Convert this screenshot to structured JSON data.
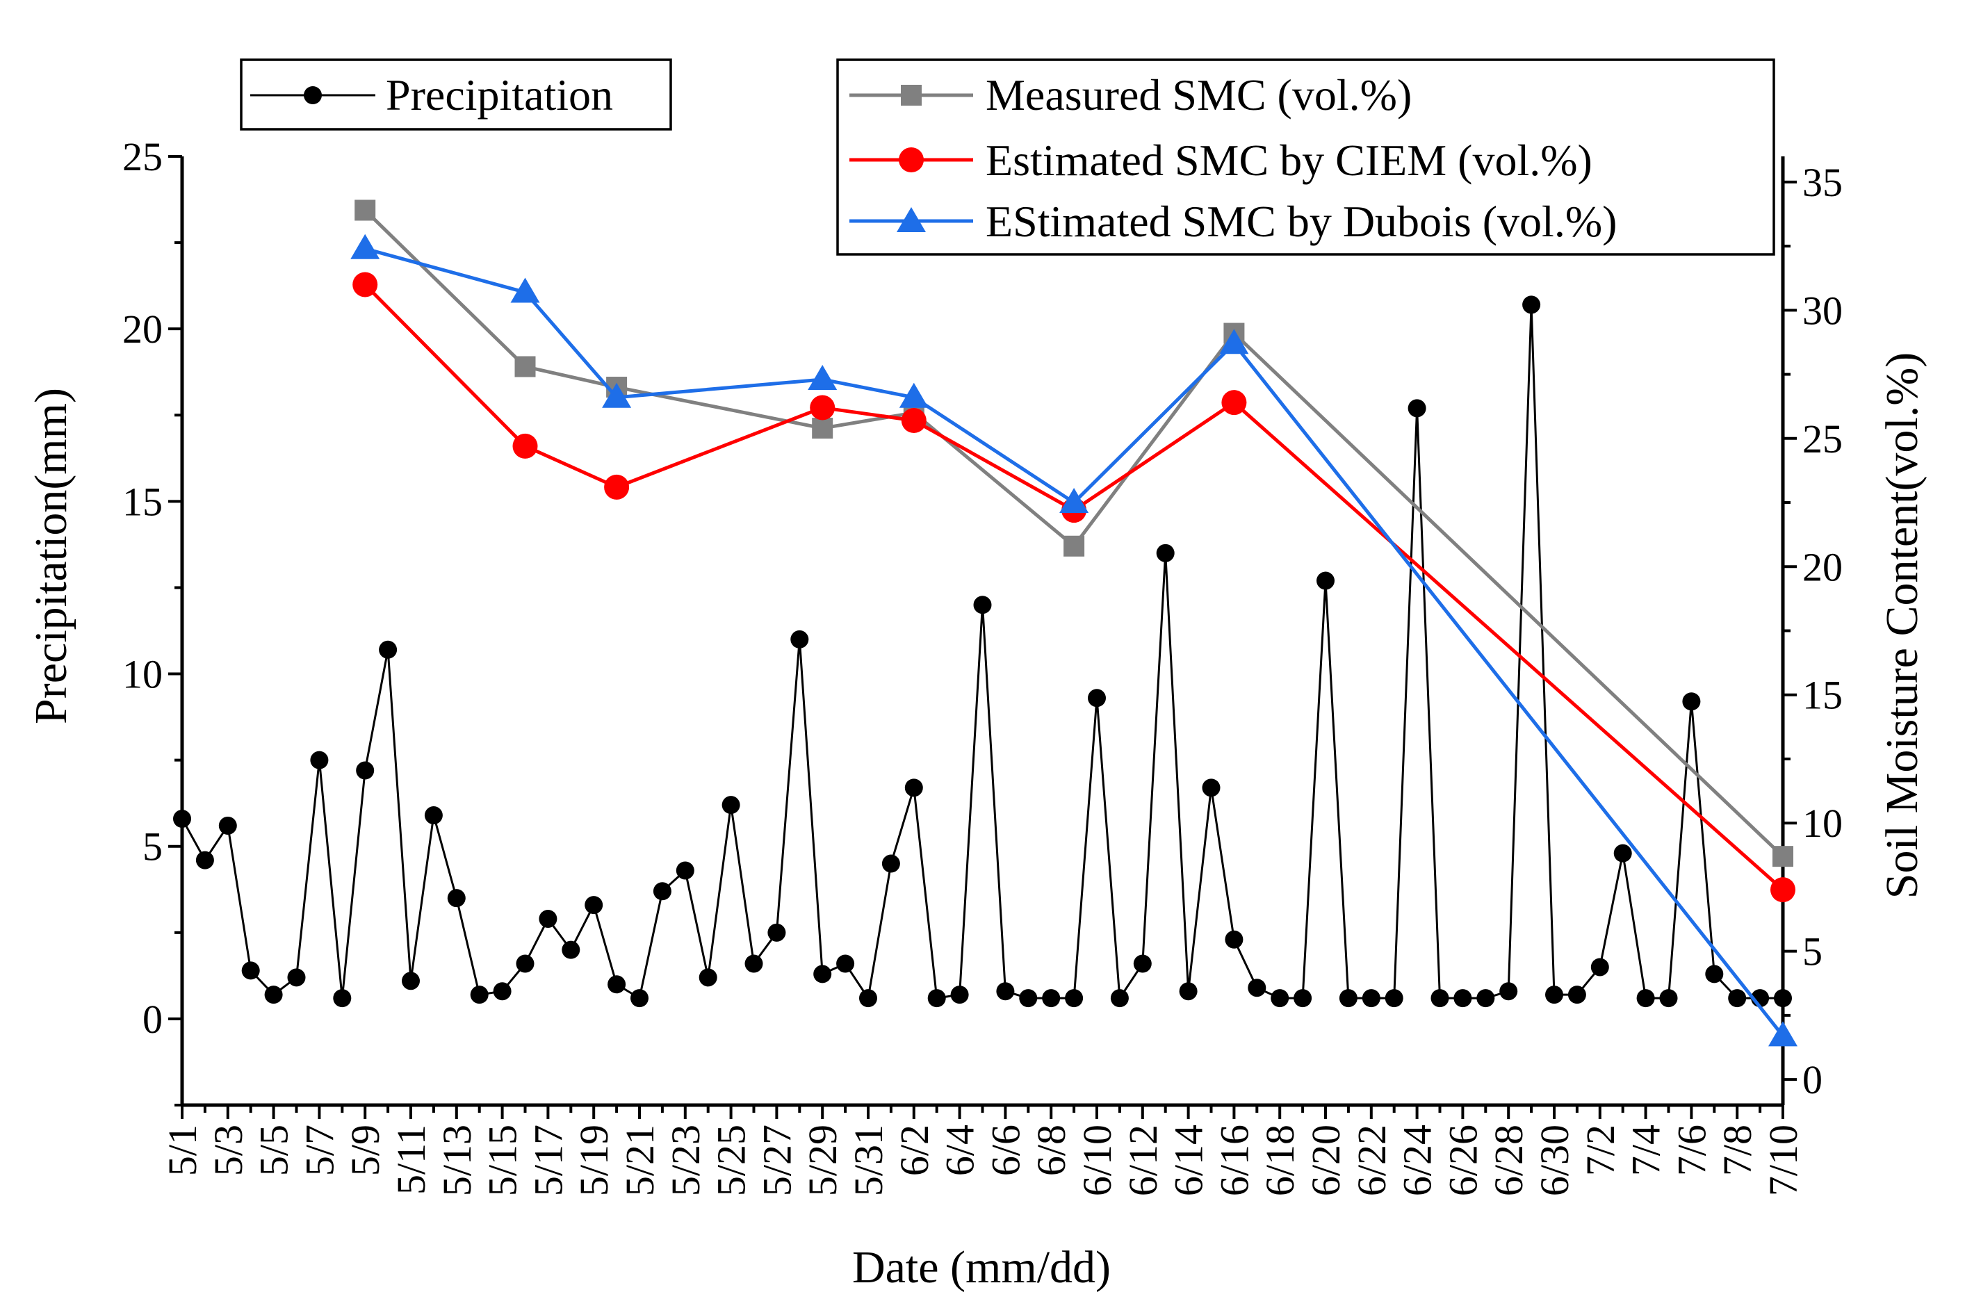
{
  "chart_data": {
    "type": "line",
    "x_axis": {
      "title": "Date (mm/dd)",
      "categories": [
        "5/1",
        "5/2",
        "5/3",
        "5/4",
        "5/5",
        "5/6",
        "5/7",
        "5/8",
        "5/9",
        "5/10",
        "5/11",
        "5/12",
        "5/13",
        "5/14",
        "5/15",
        "5/16",
        "5/17",
        "5/18",
        "5/19",
        "5/20",
        "5/21",
        "5/22",
        "5/23",
        "5/24",
        "5/25",
        "5/26",
        "5/27",
        "5/28",
        "5/29",
        "5/30",
        "5/31",
        "6/1",
        "6/2",
        "6/3",
        "6/4",
        "6/5",
        "6/6",
        "6/7",
        "6/8",
        "6/9",
        "6/10",
        "6/11",
        "6/12",
        "6/13",
        "6/14",
        "6/15",
        "6/16",
        "6/17",
        "6/18",
        "6/19",
        "6/20",
        "6/21",
        "6/22",
        "6/23",
        "6/24",
        "6/25",
        "6/26",
        "6/27",
        "6/28",
        "6/29",
        "6/30",
        "7/1",
        "7/2",
        "7/3",
        "7/4",
        "7/5",
        "7/6",
        "7/7",
        "7/8",
        "7/9",
        "7/10"
      ],
      "tick_labels": [
        "5/1",
        "5/3",
        "5/5",
        "5/7",
        "5/9",
        "5/11",
        "5/13",
        "5/15",
        "5/17",
        "5/19",
        "5/21",
        "5/23",
        "5/25",
        "5/27",
        "5/29",
        "5/31",
        "6/2",
        "6/4",
        "6/6",
        "6/8",
        "6/10",
        "6/12",
        "6/14",
        "6/16",
        "6/18",
        "6/20",
        "6/22",
        "6/24",
        "6/26",
        "6/28",
        "6/30",
        "7/2",
        "7/4",
        "7/6",
        "7/8",
        "7/10"
      ]
    },
    "y_left": {
      "title": "Precipitation(mm)",
      "range": [
        -2.5,
        25
      ],
      "ticks": [
        "0",
        "5",
        "10",
        "15",
        "20",
        "25"
      ]
    },
    "y_right": {
      "title": "Soil Moisture Content(vol.%)",
      "range": [
        -1,
        36
      ],
      "ticks": [
        "0",
        "5",
        "10",
        "15",
        "20",
        "25",
        "30",
        "35"
      ]
    },
    "series": [
      {
        "name": "Precipitation",
        "axis": "left",
        "color": "#000000",
        "marker": "circle",
        "values": [
          5.8,
          4.6,
          5.6,
          1.4,
          0.7,
          1.2,
          7.5,
          0.6,
          7.2,
          10.7,
          1.1,
          5.9,
          3.5,
          0.7,
          0.8,
          1.6,
          2.9,
          2.0,
          3.3,
          1.0,
          0.6,
          3.7,
          4.3,
          1.2,
          6.2,
          1.6,
          2.5,
          11.0,
          1.3,
          1.6,
          0.6,
          4.5,
          6.7,
          0.6,
          0.7,
          12.0,
          0.8,
          0.6,
          0.6,
          0.6,
          9.3,
          0.6,
          1.6,
          13.5,
          0.8,
          6.7,
          2.3,
          0.9,
          0.6,
          0.6,
          12.7,
          0.6,
          0.6,
          0.6,
          17.7,
          0.6,
          0.6,
          0.6,
          0.8,
          20.7,
          0.7,
          0.7,
          1.5,
          4.8,
          0.6,
          0.6,
          9.2,
          1.3,
          0.6,
          0.6,
          0.6
        ]
      },
      {
        "name": "Measured SMC (vol.%)",
        "axis": "right",
        "color": "#808080",
        "marker": "square",
        "x": [
          "5/9",
          "5/16",
          "5/20",
          "5/29",
          "6/2",
          "6/9",
          "6/16",
          "7/10"
        ],
        "values": [
          33.9,
          27.8,
          27.0,
          25.4,
          26.0,
          20.8,
          29.1,
          8.7
        ]
      },
      {
        "name": "Estimated SMC by CIEM (vol.%)",
        "axis": "right",
        "color": "#ff0000",
        "marker": "circle",
        "x": [
          "5/9",
          "5/16",
          "5/20",
          "5/29",
          "6/2",
          "6/9",
          "6/16",
          "7/10"
        ],
        "values": [
          31.0,
          24.7,
          23.1,
          26.2,
          25.7,
          22.2,
          26.4,
          7.4
        ]
      },
      {
        "name": "EStimated SMC by Dubois (vol.%)",
        "axis": "right",
        "color": "#1e6ee8",
        "marker": "triangle",
        "x": [
          "5/9",
          "5/16",
          "5/20",
          "5/29",
          "6/2",
          "6/9",
          "6/16",
          "7/10"
        ],
        "values": [
          32.4,
          30.7,
          26.6,
          27.3,
          26.6,
          22.5,
          28.7,
          1.7
        ]
      }
    ],
    "legends": [
      {
        "position": "top-left",
        "entries": [
          "Precipitation"
        ]
      },
      {
        "position": "top-right",
        "entries": [
          "Measured SMC (vol.%)",
          "Estimated SMC by CIEM (vol.%)",
          "EStimated SMC by Dubois (vol.%)"
        ]
      }
    ],
    "grid": false
  }
}
